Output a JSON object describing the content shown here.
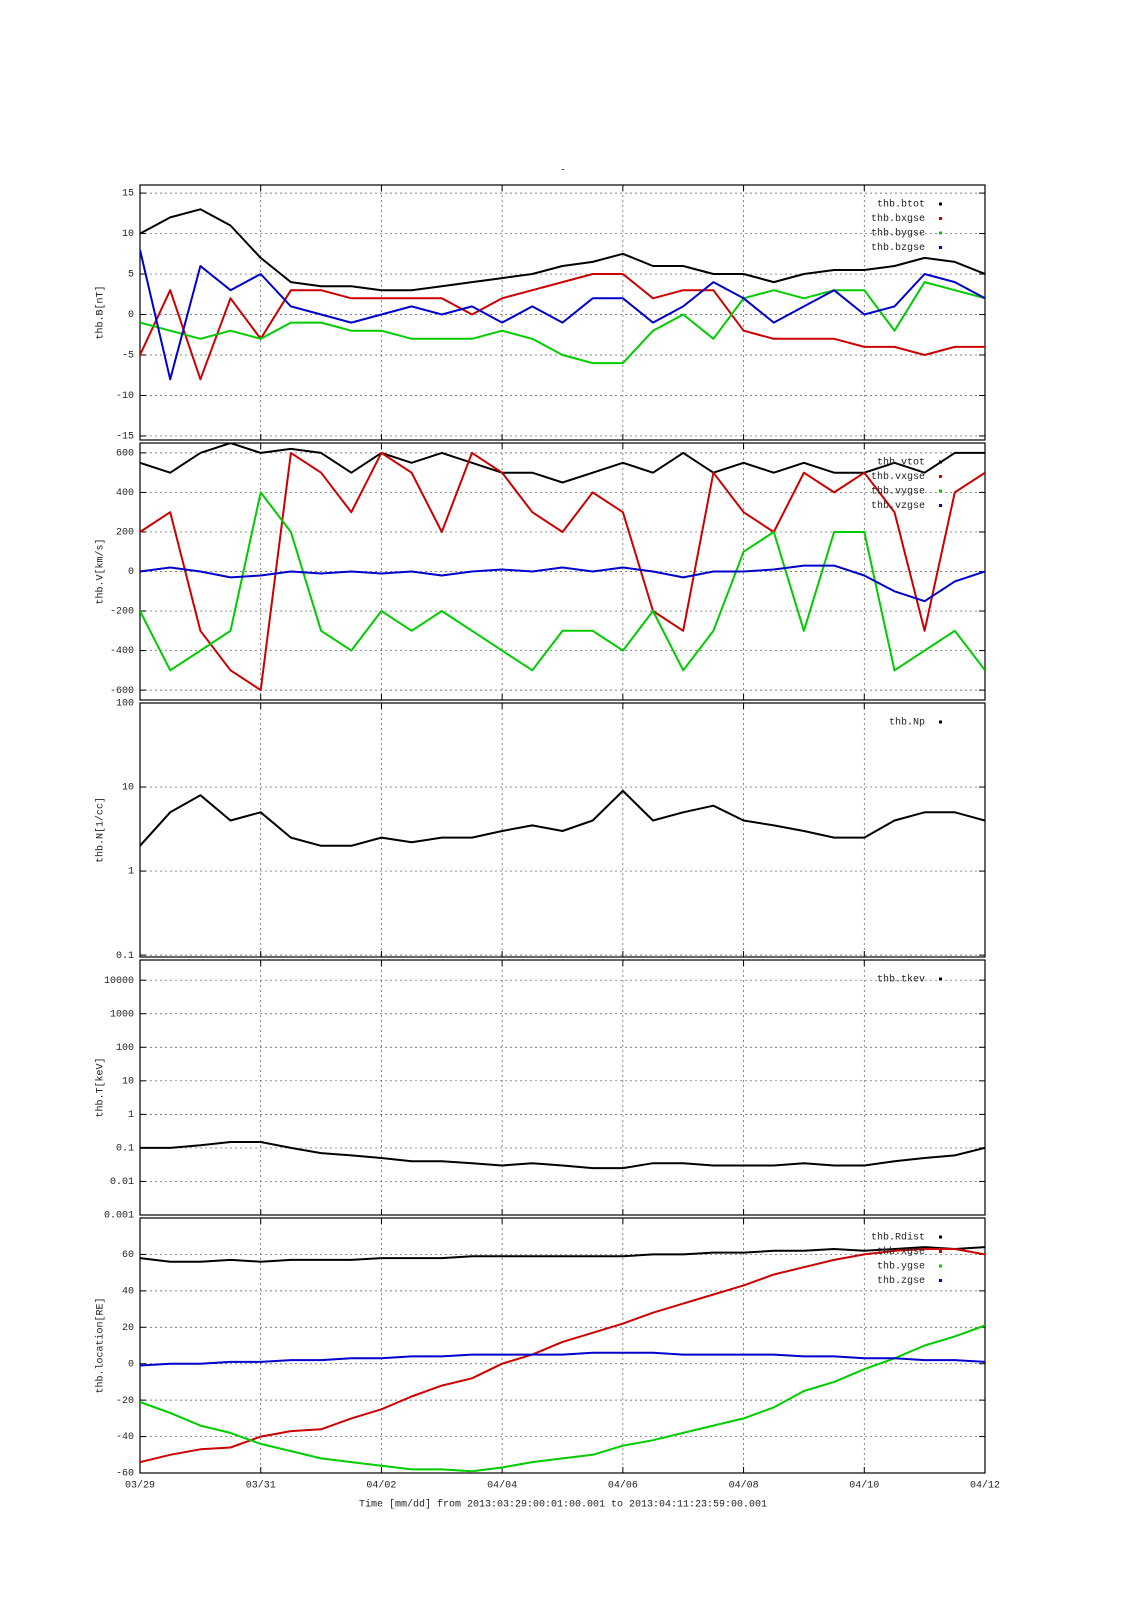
{
  "chart_data": [
    {
      "type": "line",
      "title": "-",
      "ylabel": "thb.B[nT]",
      "x": [
        0,
        0.5,
        1,
        1.5,
        2,
        2.5,
        3,
        3.5,
        4,
        4.5,
        5,
        5.5,
        6,
        6.5,
        7,
        7.5,
        8,
        8.5,
        9,
        9.5,
        10,
        10.5,
        11,
        11.5,
        12,
        12.5,
        13,
        13.5,
        14
      ],
      "xlim": [
        0,
        14
      ],
      "xticks": [
        0,
        2,
        4,
        6,
        8,
        10,
        12,
        14
      ],
      "ylim": [
        -15.5,
        16
      ],
      "yticks": [
        -15,
        -10,
        -5,
        0,
        5,
        10,
        15
      ],
      "grid": true,
      "legend": "upper right",
      "series": [
        {
          "name": "thb.btot",
          "color": "#000000",
          "values": [
            10,
            12,
            13,
            11,
            7,
            4,
            3.5,
            3.5,
            3,
            3,
            3.5,
            4,
            4.5,
            5,
            6,
            6.5,
            7.5,
            6,
            6,
            5,
            5,
            4,
            5,
            5.5,
            5.5,
            6,
            7,
            6.5,
            5
          ]
        },
        {
          "name": "thb.bxgse",
          "color": "#cc0000",
          "values": [
            -5,
            3,
            -8,
            2,
            -3,
            3,
            3,
            2,
            2,
            2,
            2,
            0,
            2,
            3,
            4,
            5,
            5,
            2,
            3,
            3,
            -2,
            -3,
            -3,
            -3,
            -4,
            -4,
            -5,
            -4,
            -4
          ]
        },
        {
          "name": "thb.bygse",
          "color": "#00cc00",
          "values": [
            -1,
            -2,
            -3,
            -2,
            -3,
            -1,
            -1,
            -2,
            -2,
            -3,
            -3,
            -3,
            -2,
            -3,
            -5,
            -6,
            -6,
            -2,
            0,
            -3,
            2,
            3,
            2,
            3,
            3,
            -2,
            4,
            3,
            2
          ]
        },
        {
          "name": "thb.bzgse",
          "color": "#0000cc",
          "values": [
            8,
            -8,
            6,
            3,
            5,
            1,
            0,
            -1,
            0,
            1,
            0,
            1,
            -1,
            1,
            -1,
            2,
            2,
            -1,
            1,
            4,
            2,
            -1,
            1,
            3,
            0,
            1,
            5,
            4,
            2
          ]
        }
      ]
    },
    {
      "type": "line",
      "ylabel": "thb.V[km/s]",
      "x": [
        0,
        0.5,
        1,
        1.5,
        2,
        2.5,
        3,
        3.5,
        4,
        4.5,
        5,
        5.5,
        6,
        6.5,
        7,
        7.5,
        8,
        8.5,
        9,
        9.5,
        10,
        10.5,
        11,
        11.5,
        12,
        12.5,
        13,
        13.5,
        14
      ],
      "xlim": [
        0,
        14
      ],
      "xticks": [
        0,
        2,
        4,
        6,
        8,
        10,
        12,
        14
      ],
      "ylim": [
        -650,
        650
      ],
      "yticks": [
        -600,
        -400,
        -200,
        0,
        200,
        400,
        600
      ],
      "grid": true,
      "legend": "upper right",
      "series": [
        {
          "name": "thb.vtot",
          "color": "#000000",
          "values": [
            550,
            500,
            600,
            650,
            600,
            620,
            600,
            500,
            600,
            550,
            600,
            550,
            500,
            500,
            450,
            500,
            550,
            500,
            600,
            500,
            550,
            500,
            550,
            500,
            500,
            550,
            500,
            600,
            600
          ]
        },
        {
          "name": "thb.vxgse",
          "color": "#cc0000",
          "values": [
            200,
            300,
            -300,
            -500,
            -600,
            600,
            500,
            300,
            600,
            500,
            200,
            600,
            500,
            300,
            200,
            400,
            300,
            -200,
            -300,
            500,
            300,
            200,
            500,
            400,
            500,
            300,
            -300,
            400,
            500
          ]
        },
        {
          "name": "thb.vygse",
          "color": "#00cc00",
          "values": [
            -200,
            -500,
            -400,
            -300,
            400,
            200,
            -300,
            -400,
            -200,
            -300,
            -200,
            -300,
            -400,
            -500,
            -300,
            -300,
            -400,
            -200,
            -500,
            -300,
            100,
            200,
            -300,
            200,
            200,
            -500,
            -400,
            -300,
            -500
          ]
        },
        {
          "name": "thb.vzgse",
          "color": "#0000cc",
          "values": [
            0,
            20,
            0,
            -30,
            -20,
            0,
            -10,
            0,
            -10,
            0,
            -20,
            0,
            10,
            0,
            20,
            0,
            20,
            0,
            -30,
            0,
            0,
            10,
            30,
            30,
            -20,
            -100,
            -150,
            -50,
            0
          ]
        }
      ]
    },
    {
      "type": "line",
      "ylabel": "thb.N[1/cc]",
      "log_y": true,
      "x": [
        0,
        0.5,
        1,
        1.5,
        2,
        2.5,
        3,
        3.5,
        4,
        4.5,
        5,
        5.5,
        6,
        6.5,
        7,
        7.5,
        8,
        8.5,
        9,
        9.5,
        10,
        10.5,
        11,
        11.5,
        12,
        12.5,
        13,
        13.5,
        14
      ],
      "xlim": [
        0,
        14
      ],
      "xticks": [
        0,
        2,
        4,
        6,
        8,
        10,
        12,
        14
      ],
      "ylim": [
        0.095,
        100
      ],
      "yticks": [
        0.1,
        1,
        10,
        100
      ],
      "grid": true,
      "legend": "upper right",
      "series": [
        {
          "name": "thb.Np",
          "color": "#000000",
          "values": [
            2,
            5,
            8,
            4,
            5,
            2.5,
            2,
            2,
            2.5,
            2.2,
            2.5,
            2.5,
            3,
            3.5,
            3,
            4,
            9,
            4,
            5,
            6,
            4,
            3.5,
            3,
            2.5,
            2.5,
            4,
            5,
            5,
            4
          ]
        }
      ]
    },
    {
      "type": "line",
      "ylabel": "thb.T[keV]",
      "log_y": true,
      "x": [
        0,
        0.5,
        1,
        1.5,
        2,
        2.5,
        3,
        3.5,
        4,
        4.5,
        5,
        5.5,
        6,
        6.5,
        7,
        7.5,
        8,
        8.5,
        9,
        9.5,
        10,
        10.5,
        11,
        11.5,
        12,
        12.5,
        13,
        13.5,
        14
      ],
      "xlim": [
        0,
        14
      ],
      "xticks": [
        0,
        2,
        4,
        6,
        8,
        10,
        12,
        14
      ],
      "ylim": [
        0.001,
        40000
      ],
      "yticks": [
        0.001,
        0.01,
        0.1,
        1,
        10,
        100,
        1000,
        10000
      ],
      "grid": true,
      "legend": "upper right",
      "series": [
        {
          "name": "thb.tkev",
          "color": "#000000",
          "values": [
            0.1,
            0.1,
            0.12,
            0.15,
            0.15,
            0.1,
            0.07,
            0.06,
            0.05,
            0.04,
            0.04,
            0.035,
            0.03,
            0.035,
            0.03,
            0.025,
            0.025,
            0.035,
            0.035,
            0.03,
            0.03,
            0.03,
            0.035,
            0.03,
            0.03,
            0.04,
            0.05,
            0.06,
            0.1
          ]
        }
      ]
    },
    {
      "type": "line",
      "ylabel": "thb.location[RE]",
      "xlabel": "Time [mm/dd]  from 2013:03:29:00:01:00.001  to  2013:04:11:23:59:00.001",
      "x": [
        0,
        0.5,
        1,
        1.5,
        2,
        2.5,
        3,
        3.5,
        4,
        4.5,
        5,
        5.5,
        6,
        6.5,
        7,
        7.5,
        8,
        8.5,
        9,
        9.5,
        10,
        10.5,
        11,
        11.5,
        12,
        12.5,
        13,
        13.5,
        14
      ],
      "xlim": [
        0,
        14
      ],
      "xticks": [
        {
          "value": 0,
          "label": "03/29"
        },
        {
          "value": 2,
          "label": "03/31"
        },
        {
          "value": 4,
          "label": "04/02"
        },
        {
          "value": 6,
          "label": "04/04"
        },
        {
          "value": 8,
          "label": "04/06"
        },
        {
          "value": 10,
          "label": "04/08"
        },
        {
          "value": 12,
          "label": "04/10"
        },
        {
          "value": 14,
          "label": "04/12"
        }
      ],
      "ylim": [
        -60,
        80
      ],
      "yticks": [
        -60,
        -40,
        -20,
        0,
        20,
        40,
        60
      ],
      "grid": true,
      "legend": "upper right",
      "series": [
        {
          "name": "thb.Rdist",
          "color": "#000000",
          "values": [
            58,
            56,
            56,
            57,
            56,
            57,
            57,
            57,
            58,
            58,
            58,
            59,
            59,
            59,
            59,
            59,
            59,
            60,
            60,
            61,
            61,
            62,
            62,
            63,
            62,
            63,
            64,
            63,
            64
          ]
        },
        {
          "name": "thb.xgse",
          "color": "#cc0000",
          "values": [
            -54,
            -50,
            -47,
            -46,
            -40,
            -37,
            -36,
            -30,
            -25,
            -18,
            -12,
            -8,
            0,
            5,
            12,
            17,
            22,
            28,
            33,
            38,
            43,
            49,
            53,
            57,
            60,
            62,
            63,
            63,
            60
          ]
        },
        {
          "name": "thb.ygse",
          "color": "#00cc00",
          "values": [
            -21,
            -27,
            -34,
            -38,
            -44,
            -48,
            -52,
            -54,
            -56,
            -58,
            -58,
            -59,
            -57,
            -54,
            -52,
            -50,
            -45,
            -42,
            -38,
            -34,
            -30,
            -24,
            -15,
            -10,
            -3,
            3,
            10,
            15,
            21
          ]
        },
        {
          "name": "thb.zgse",
          "color": "#0000cc",
          "values": [
            -1,
            0,
            0,
            1,
            1,
            2,
            2,
            3,
            3,
            4,
            4,
            5,
            5,
            5,
            5,
            6,
            6,
            6,
            5,
            5,
            5,
            5,
            4,
            4,
            3,
            3,
            2,
            2,
            1
          ]
        }
      ]
    }
  ]
}
